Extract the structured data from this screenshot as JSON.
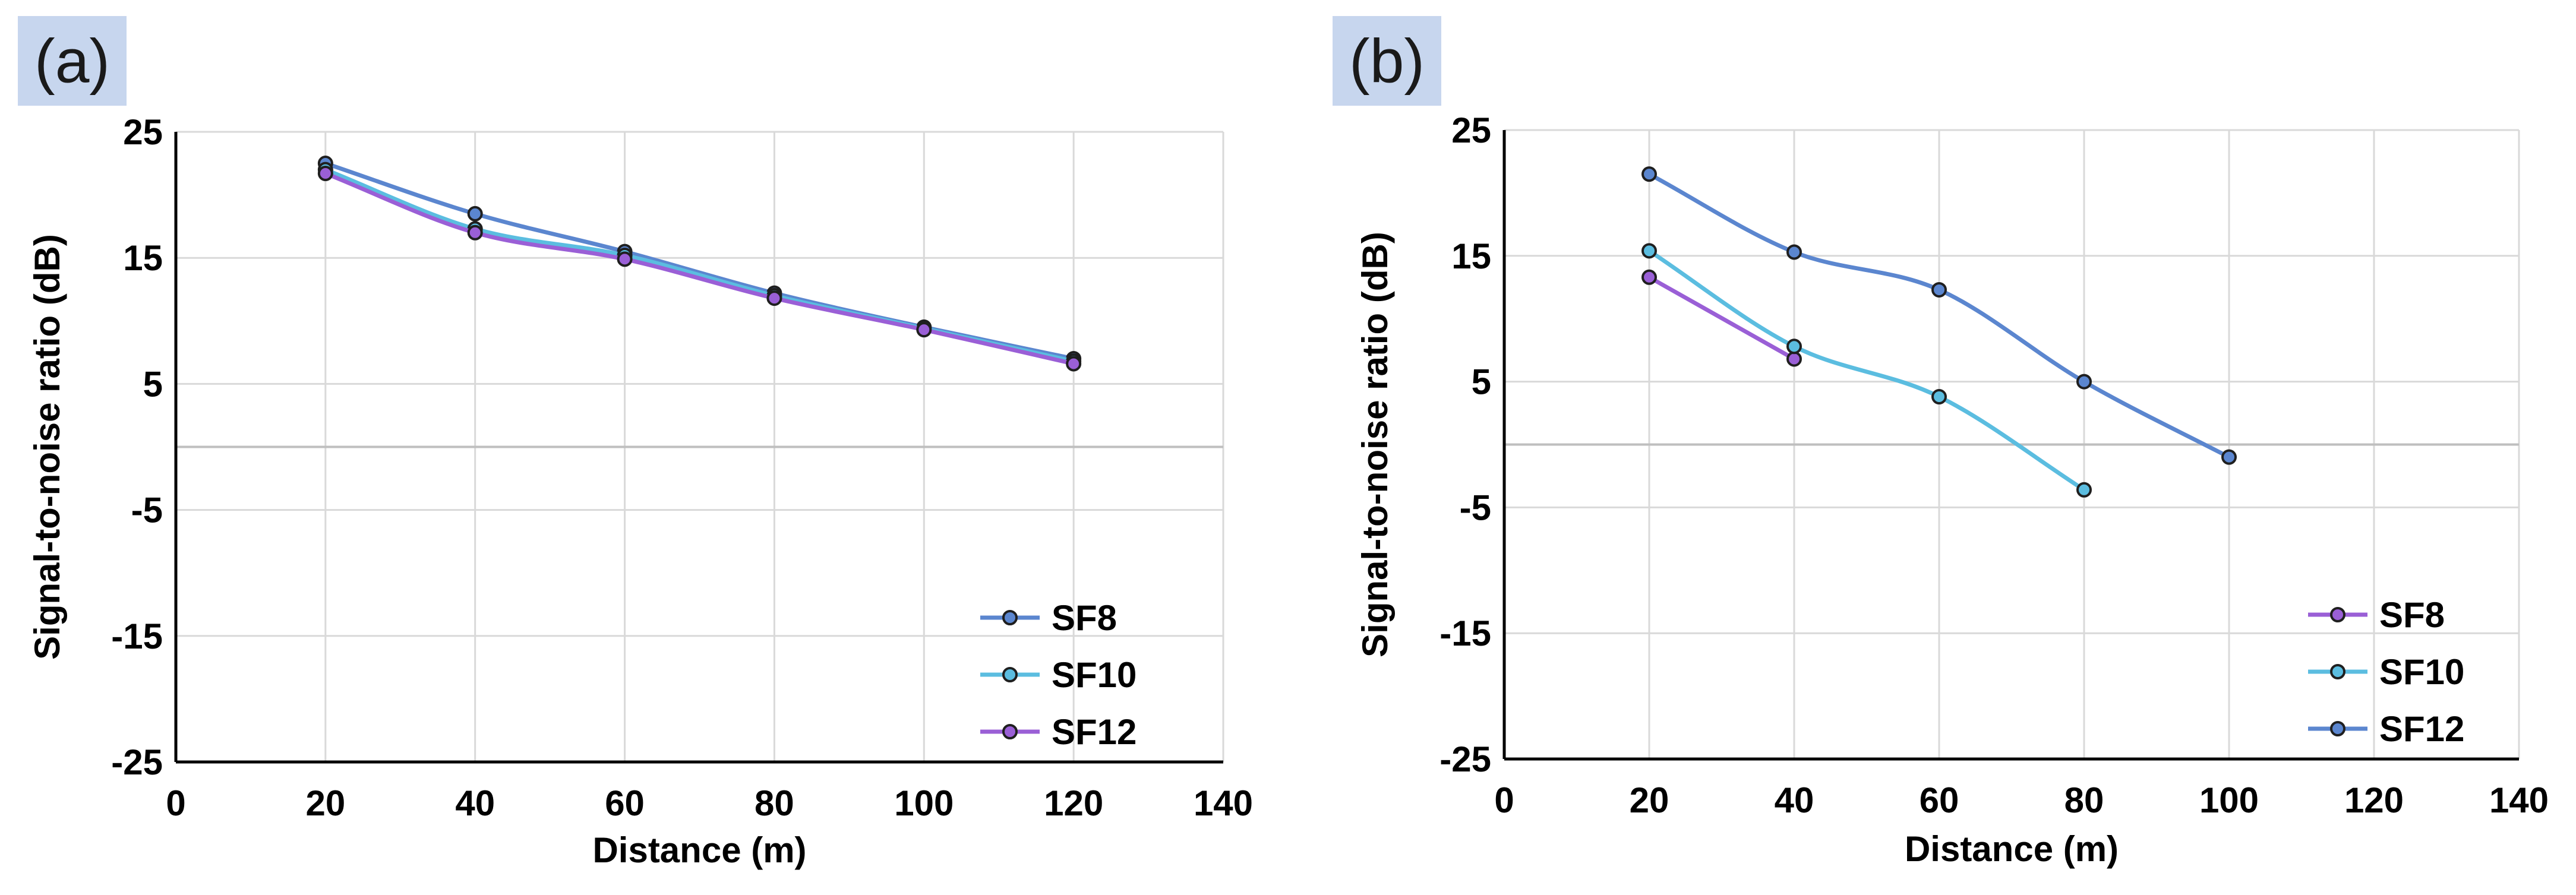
{
  "colors": {
    "panel_label_bg": "#c7d6ee",
    "gridline": "#d9d9d9",
    "zero_line": "#bfbfbf",
    "axis": "#000000",
    "marker_edge": "#1f1f1f"
  },
  "chart_data": [
    {
      "panel": "(a)",
      "type": "line",
      "xlabel": "Distance (m)",
      "ylabel": "Signal-to-noise ratio (dB)",
      "xlim": [
        0,
        140
      ],
      "ylim": [
        -25,
        25
      ],
      "xticks": [
        0,
        20,
        40,
        60,
        80,
        100,
        120,
        140
      ],
      "yticks": [
        25,
        15,
        5,
        -5,
        -15,
        -25
      ],
      "grid": true,
      "legend_position": "bottom-right",
      "series": [
        {
          "name": "SF8",
          "color": "#5b86cf",
          "x": [
            20,
            40,
            60,
            80,
            100,
            120
          ],
          "y": [
            22.5,
            18.5,
            15.5,
            12.2,
            9.5,
            7.0
          ]
        },
        {
          "name": "SF10",
          "color": "#5bbde0",
          "x": [
            20,
            40,
            60,
            80,
            100,
            120
          ],
          "y": [
            22.0,
            17.3,
            15.2,
            12.0,
            9.4,
            6.8
          ]
        },
        {
          "name": "SF12",
          "color": "#9a5fd6",
          "x": [
            20,
            40,
            60,
            80,
            100,
            120
          ],
          "y": [
            21.7,
            17.0,
            14.9,
            11.8,
            9.3,
            6.6
          ]
        }
      ]
    },
    {
      "panel": "(b)",
      "type": "line",
      "xlabel": "Distance (m)",
      "ylabel": "Signal-to-noise ratio (dB)",
      "xlim": [
        0,
        140
      ],
      "ylim": [
        -25,
        25
      ],
      "xticks": [
        0,
        20,
        40,
        60,
        80,
        100,
        120,
        140
      ],
      "yticks": [
        25,
        15,
        5,
        -5,
        -15,
        -25
      ],
      "grid": true,
      "legend_position": "bottom-right",
      "series": [
        {
          "name": "SF8",
          "color": "#9a5fd6",
          "x": [
            20,
            40
          ],
          "y": [
            13.3,
            6.8
          ]
        },
        {
          "name": "SF10",
          "color": "#5bbde0",
          "x": [
            20,
            40,
            60,
            80
          ],
          "y": [
            15.4,
            7.8,
            3.8,
            -3.6
          ]
        },
        {
          "name": "SF12",
          "color": "#5b86cf",
          "x": [
            20,
            40,
            60,
            80,
            100
          ],
          "y": [
            21.5,
            15.3,
            12.3,
            5.0,
            -1.0
          ]
        }
      ]
    }
  ]
}
